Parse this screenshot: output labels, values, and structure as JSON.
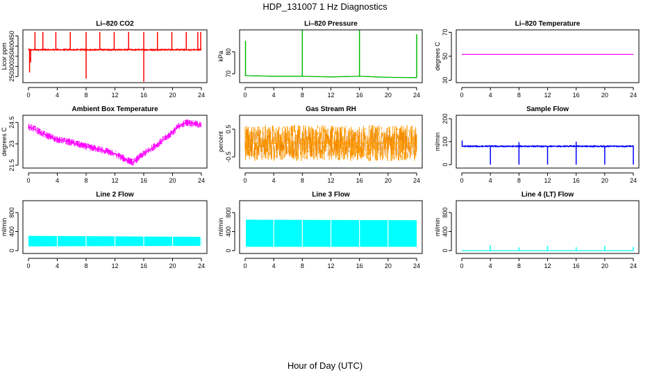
{
  "figure": {
    "title": "HDP_131007  1 Hz Diagnostics",
    "xlabel": "Hour of Day (UTC)"
  },
  "chart_data": [
    {
      "type": "line",
      "title": "Li–820 CO2",
      "ylabel": "Licor ppm",
      "color": "#ff0000",
      "xlim": [
        0,
        24
      ],
      "ylim": [
        220,
        480
      ],
      "xticks": [
        0,
        4,
        8,
        12,
        16,
        20,
        24
      ],
      "yticks": [
        250,
        300,
        350,
        400,
        450
      ],
      "baseline": {
        "x": [
          0,
          24
        ],
        "y": [
          382,
          382
        ],
        "noise": 6
      },
      "spikes": [
        {
          "x": 0.15,
          "y": 270
        },
        {
          "x": 0.3,
          "y": 320
        },
        {
          "x": 0.9,
          "y": 470
        },
        {
          "x": 2.0,
          "y": 470
        },
        {
          "x": 3.8,
          "y": 470
        },
        {
          "x": 5.8,
          "y": 470
        },
        {
          "x": 8.0,
          "y": 240
        },
        {
          "x": 8.0,
          "y": 470
        },
        {
          "x": 9.9,
          "y": 470
        },
        {
          "x": 11.9,
          "y": 470
        },
        {
          "x": 13.9,
          "y": 470
        },
        {
          "x": 16.0,
          "y": 225
        },
        {
          "x": 16.0,
          "y": 470
        },
        {
          "x": 17.9,
          "y": 470
        },
        {
          "x": 19.9,
          "y": 470
        },
        {
          "x": 21.9,
          "y": 470
        },
        {
          "x": 23.5,
          "y": 470
        },
        {
          "x": 23.9,
          "y": 470
        }
      ]
    },
    {
      "type": "line",
      "title": "Li–820 Pressure",
      "ylabel": "kPa",
      "color": "#00bb00",
      "xlim": [
        0,
        24
      ],
      "ylim": [
        66,
        90
      ],
      "xticks": [
        0,
        4,
        8,
        12,
        16,
        20,
        24
      ],
      "yticks": [
        70,
        80
      ],
      "baseline": {
        "x": [
          0,
          4,
          8,
          12,
          16,
          20,
          24
        ],
        "y": [
          69.2,
          68.9,
          68.9,
          68.6,
          68.9,
          68.4,
          68.3
        ],
        "noise": 0.2
      },
      "spikes": [
        {
          "x": 0.05,
          "y": 85
        },
        {
          "x": 8.0,
          "y": 90
        },
        {
          "x": 16.0,
          "y": 90
        },
        {
          "x": 24.0,
          "y": 88
        }
      ]
    },
    {
      "type": "line",
      "title": "Li–820 Temperature",
      "ylabel": "degrees C",
      "color": "#ff00ff",
      "xlim": [
        0,
        24
      ],
      "ylim": [
        28,
        72
      ],
      "xticks": [
        0,
        4,
        8,
        12,
        16,
        20,
        24
      ],
      "yticks": [
        30,
        50,
        70
      ],
      "baseline": {
        "x": [
          0,
          24
        ],
        "y": [
          51.5,
          51.5
        ],
        "noise": 0
      },
      "spikes": []
    },
    {
      "type": "line",
      "title": "Ambient Box Temperature",
      "ylabel": "degrees C",
      "color": "#ff00ff",
      "xlim": [
        0,
        24
      ],
      "ylim": [
        21.3,
        25.0
      ],
      "xticks": [
        0,
        4,
        8,
        12,
        16,
        20,
        24
      ],
      "yticks": [
        21.5,
        23.0,
        24.5
      ],
      "baseline": {
        "x": [
          0,
          1,
          2,
          4,
          6,
          8,
          10,
          12,
          13.5,
          14.5,
          16,
          18,
          20,
          21,
          22,
          24
        ],
        "y": [
          24.2,
          24.0,
          23.7,
          23.3,
          23.1,
          22.8,
          22.6,
          22.3,
          21.9,
          21.7,
          22.3,
          23.0,
          23.8,
          24.3,
          24.5,
          24.3
        ],
        "noise": 0.25
      },
      "spikes": []
    },
    {
      "type": "line",
      "title": "Gas Stream RH",
      "ylabel": "percent",
      "color": "#ff9900",
      "overlay_color": "#cc6600",
      "xlim": [
        0,
        24
      ],
      "ylim": [
        -0.9,
        1.0
      ],
      "xticks": [
        0,
        4,
        8,
        12,
        16,
        20,
        24
      ],
      "yticks": [
        -0.5,
        0.5
      ],
      "baseline": {
        "x": [
          0,
          24
        ],
        "y": [
          0.0,
          0.0
        ],
        "noise": 0.65
      },
      "spikes": []
    },
    {
      "type": "line",
      "title": "Sample Flow",
      "ylabel": "ml/min",
      "color": "#0000ff",
      "xlim": [
        0,
        24
      ],
      "ylim": [
        -15,
        215
      ],
      "xticks": [
        0,
        4,
        8,
        12,
        16,
        20,
        24
      ],
      "yticks": [
        0,
        100,
        200
      ],
      "baseline": {
        "x": [
          0,
          24
        ],
        "y": [
          80,
          80
        ],
        "noise": 5
      },
      "spikes": [
        {
          "x": 0.05,
          "y": 105
        },
        {
          "x": 4.0,
          "y": 0
        },
        {
          "x": 8.0,
          "y": 0
        },
        {
          "x": 8.0,
          "y": 98
        },
        {
          "x": 12.0,
          "y": 0
        },
        {
          "x": 16.0,
          "y": 0
        },
        {
          "x": 16.0,
          "y": 100
        },
        {
          "x": 20.0,
          "y": 0
        },
        {
          "x": 24.0,
          "y": 0
        }
      ]
    },
    {
      "type": "area",
      "title": "Line 2 Flow",
      "ylabel": "ml/min",
      "color": "#00ffff",
      "xlim": [
        0,
        24
      ],
      "ylim": [
        -60,
        1050
      ],
      "xticks": [
        0,
        4,
        8,
        12,
        16,
        20,
        24
      ],
      "yticks": [
        0,
        400,
        800
      ],
      "band": {
        "x": [
          0,
          24
        ],
        "lower": [
          90,
          100
        ],
        "upper": [
          310,
          290
        ]
      },
      "gaps": [
        4,
        8,
        12,
        16,
        20,
        23.9
      ]
    },
    {
      "type": "area",
      "title": "Line 3 Flow",
      "ylabel": "ml/min",
      "color": "#00ffff",
      "xlim": [
        0,
        24
      ],
      "ylim": [
        -60,
        1050
      ],
      "xticks": [
        0,
        4,
        8,
        12,
        16,
        20,
        24
      ],
      "yticks": [
        0,
        400,
        800
      ],
      "band": {
        "x": [
          0.1,
          24
        ],
        "lower": [
          80,
          80
        ],
        "upper": [
          650,
          640
        ]
      },
      "gaps": [
        4,
        8,
        12,
        16,
        20
      ]
    },
    {
      "type": "line",
      "title": "Line 4 (LT) Flow",
      "ylabel": "ml/min",
      "color": "#00ffff",
      "xlim": [
        0,
        24
      ],
      "ylim": [
        -60,
        1050
      ],
      "xticks": [
        0,
        4,
        8,
        12,
        16,
        20,
        24
      ],
      "yticks": [
        0,
        400,
        800
      ],
      "baseline": {
        "x": [
          0,
          24
        ],
        "y": [
          0,
          0
        ],
        "noise": 0
      },
      "spikes": [
        {
          "x": 4.0,
          "y": 110
        },
        {
          "x": 8.0,
          "y": 70
        },
        {
          "x": 12.0,
          "y": 100
        },
        {
          "x": 16.0,
          "y": 70
        },
        {
          "x": 20.0,
          "y": 100
        },
        {
          "x": 24.0,
          "y": 80
        }
      ]
    }
  ]
}
